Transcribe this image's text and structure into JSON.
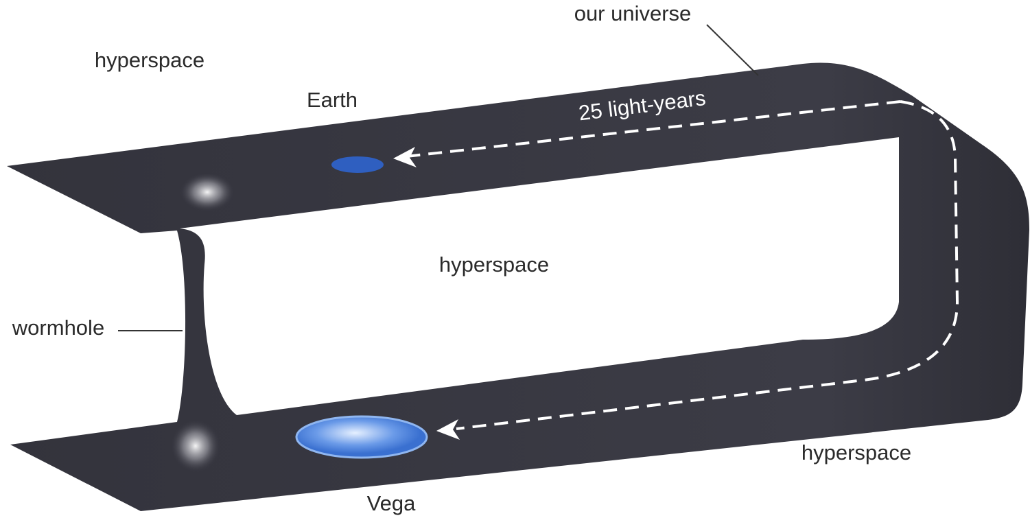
{
  "labels": {
    "our_universe": "our universe",
    "hyperspace_top_left": "hyperspace",
    "hyperspace_center": "hyperspace",
    "hyperspace_bottom_right": "hyperspace",
    "earth": "Earth",
    "distance": "25 light-years",
    "wormhole": "wormhole",
    "vega": "Vega"
  }
}
